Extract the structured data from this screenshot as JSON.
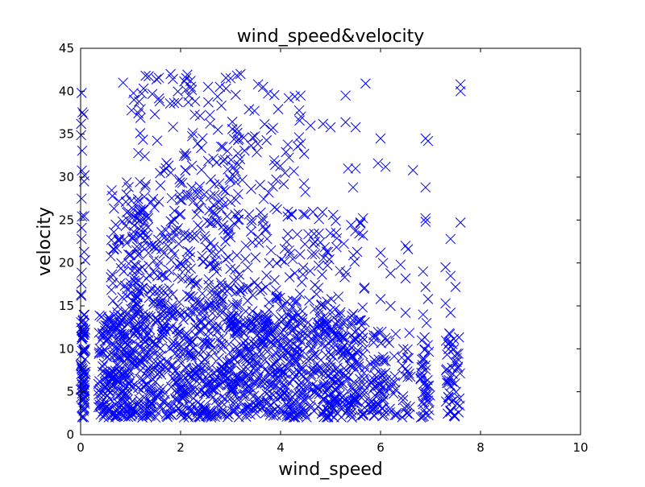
{
  "chart_data": {
    "type": "scatter",
    "title": "wind_speed&velocity",
    "xlabel": "wind_speed",
    "ylabel": "velocity",
    "xlim": [
      0,
      10
    ],
    "ylim": [
      0,
      45
    ],
    "xticks": [
      "0",
      "2",
      "4",
      "6",
      "8",
      "10"
    ],
    "yticks": [
      "0",
      "5",
      "10",
      "15",
      "20",
      "25",
      "30",
      "35",
      "40",
      "45"
    ],
    "marker": "x",
    "color": "#0000ff",
    "grid": false,
    "legend": "none",
    "series": [
      {
        "clusters": [
          {
            "xr": [
              0.0,
              0.1
            ],
            "yr": [
              2,
              14
            ],
            "n": 80
          },
          {
            "xr": [
              0.0,
              0.1
            ],
            "yr": [
              14,
              38
            ],
            "n": 15
          },
          {
            "xr": [
              0.35,
              1.0
            ],
            "yr": [
              2,
              14
            ],
            "n": 220
          },
          {
            "xr": [
              0.6,
              1.2
            ],
            "yr": [
              14,
              30
            ],
            "n": 70
          },
          {
            "xr": [
              1.0,
              3.2
            ],
            "yr": [
              2,
              16
            ],
            "n": 550
          },
          {
            "xr": [
              1.0,
              3.2
            ],
            "yr": [
              16,
              28
            ],
            "n": 220
          },
          {
            "xr": [
              1.0,
              3.2
            ],
            "yr": [
              28,
              42
            ],
            "n": 110
          },
          {
            "xr": [
              3.2,
              5.0
            ],
            "yr": [
              2,
              14
            ],
            "n": 420
          },
          {
            "xr": [
              3.2,
              5.0
            ],
            "yr": [
              14,
              26
            ],
            "n": 110
          },
          {
            "xr": [
              3.2,
              4.5
            ],
            "yr": [
              26,
              40
            ],
            "n": 45
          },
          {
            "xr": [
              5.0,
              5.7
            ],
            "yr": [
              2,
              14
            ],
            "n": 170
          },
          {
            "xr": [
              5.0,
              5.7
            ],
            "yr": [
              14,
              26
            ],
            "n": 25
          },
          {
            "xr": [
              5.8,
              6.1
            ],
            "yr": [
              2,
              12
            ],
            "n": 60
          },
          {
            "xr": [
              6.1,
              6.6
            ],
            "yr": [
              2,
              12
            ],
            "n": 40
          },
          {
            "xr": [
              6.8,
              7.0
            ],
            "yr": [
              2,
              12
            ],
            "n": 40
          },
          {
            "xr": [
              7.3,
              7.6
            ],
            "yr": [
              2,
              12
            ],
            "n": 50
          }
        ],
        "points": [
          [
            0.02,
            39.8
          ],
          [
            0.01,
            36.2
          ],
          [
            0.02,
            27.5
          ],
          [
            0.02,
            22.8
          ],
          [
            0.02,
            17.6
          ],
          [
            0.85,
            41.0
          ],
          [
            1.3,
            41.8
          ],
          [
            1.8,
            42.0
          ],
          [
            2.2,
            41.2
          ],
          [
            2.55,
            40.5
          ],
          [
            3.0,
            41.5
          ],
          [
            3.2,
            42.0
          ],
          [
            3.55,
            40.8
          ],
          [
            3.65,
            40.5
          ],
          [
            4.4,
            39.5
          ],
          [
            5.3,
            39.5
          ],
          [
            5.7,
            40.9
          ],
          [
            5.3,
            36.4
          ],
          [
            5.5,
            35.8
          ],
          [
            5.35,
            31.0
          ],
          [
            5.5,
            31.0
          ],
          [
            5.45,
            28.8
          ],
          [
            5.0,
            35.8
          ],
          [
            4.6,
            36.0
          ],
          [
            4.85,
            36.2
          ],
          [
            5.65,
            25.2
          ],
          [
            5.65,
            23.2
          ],
          [
            6.0,
            34.5
          ],
          [
            5.95,
            31.6
          ],
          [
            6.1,
            31.2
          ],
          [
            6.65,
            30.8
          ],
          [
            6.9,
            34.5
          ],
          [
            6.95,
            34.2
          ],
          [
            6.9,
            28.8
          ],
          [
            6.9,
            25.2
          ],
          [
            6.9,
            24.8
          ],
          [
            7.6,
            40.8
          ],
          [
            7.6,
            40.0
          ],
          [
            7.6,
            24.7
          ],
          [
            7.4,
            22.8
          ],
          [
            7.3,
            19.5
          ],
          [
            7.4,
            18.5
          ],
          [
            7.5,
            17.2
          ],
          [
            7.3,
            15.3
          ],
          [
            7.4,
            14.2
          ],
          [
            6.0,
            21.2
          ],
          [
            6.05,
            20.0
          ],
          [
            6.2,
            18.8
          ],
          [
            6.5,
            22.0
          ],
          [
            6.55,
            21.6
          ],
          [
            6.4,
            19.8
          ],
          [
            6.5,
            18.2
          ],
          [
            6.2,
            15.0
          ],
          [
            6.5,
            14.2
          ],
          [
            6.0,
            15.8
          ],
          [
            6.85,
            19.0
          ],
          [
            6.9,
            17.2
          ],
          [
            6.95,
            15.8
          ],
          [
            6.85,
            14.0
          ],
          [
            6.92,
            13.0
          ]
        ]
      }
    ]
  }
}
